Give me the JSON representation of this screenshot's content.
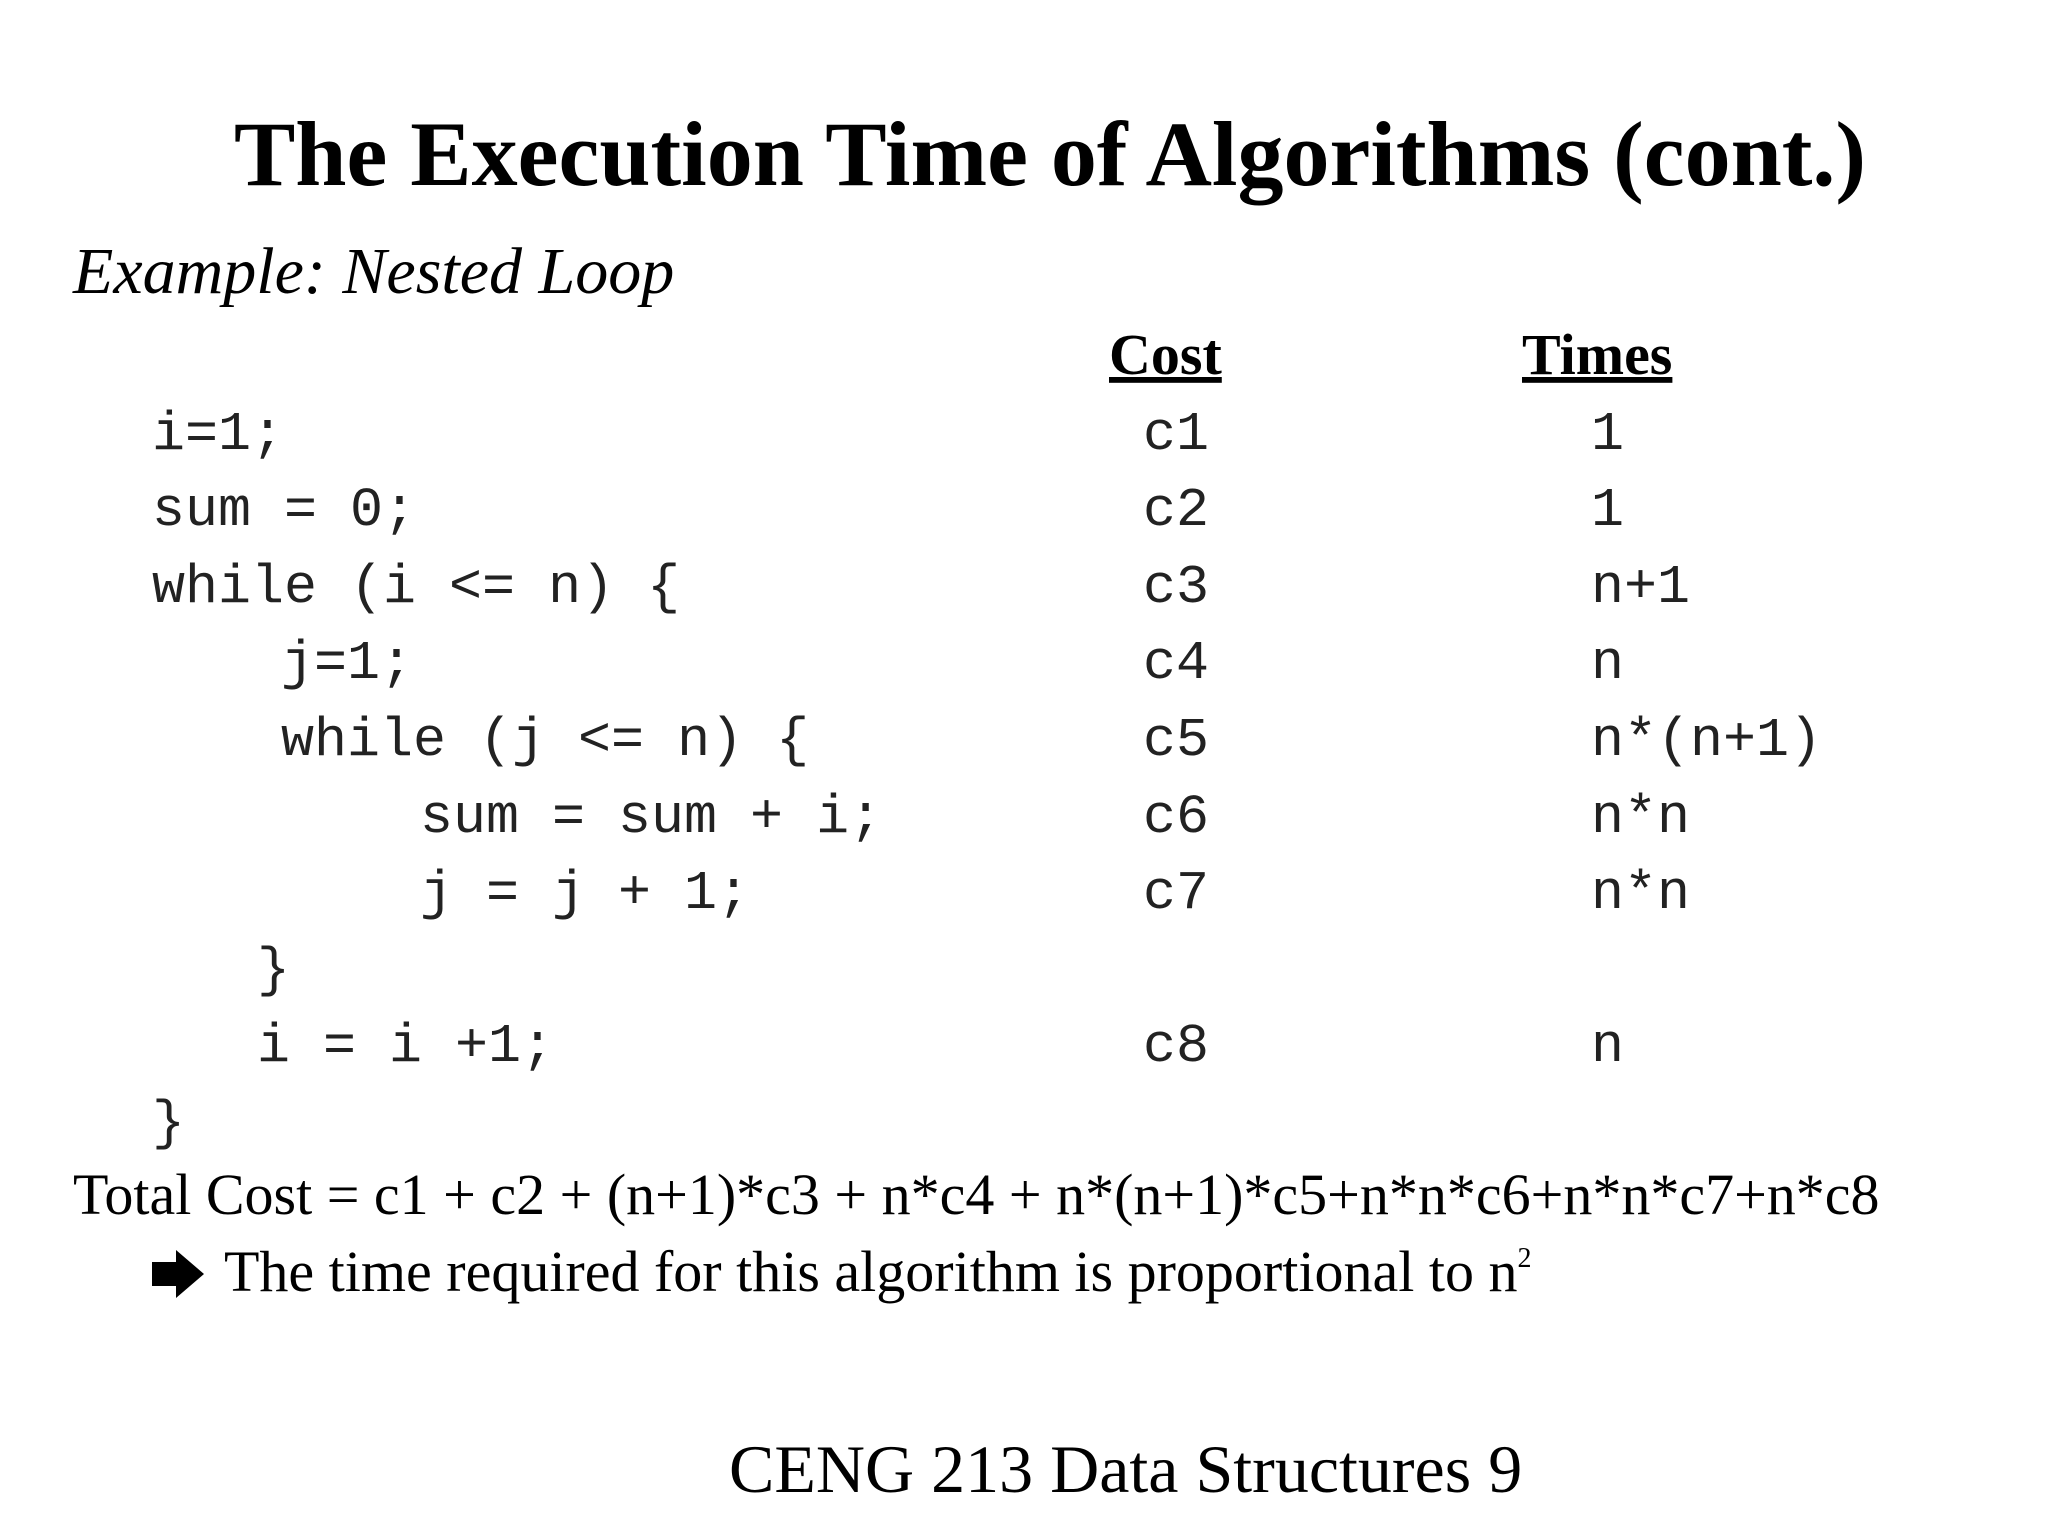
{
  "slide": {
    "title": "The Execution Time of Algorithms (cont.)",
    "subtitle": "Example: Nested Loop",
    "headers": {
      "cost": "Cost",
      "times": "Times"
    },
    "rows": [
      {
        "code": "i=1;",
        "cost": "c1",
        "times": "1"
      },
      {
        "code": "sum = 0;",
        "cost": "c2",
        "times": "1"
      },
      {
        "code": "while (i <= n) {",
        "cost": "c3",
        "times": "n+1"
      },
      {
        "code": "j=1;",
        "cost": "c4",
        "times": "n"
      },
      {
        "code": "while (j <= n) {",
        "cost": "c5",
        "times": "n*(n+1)"
      },
      {
        "code": "sum = sum + i;",
        "cost": "c6",
        "times": "n*n"
      },
      {
        "code": "j = j + 1;",
        "cost": "c7",
        "times": "n*n"
      },
      {
        "code": "}"
      },
      {
        "code": "i = i +1;",
        "cost": "c8",
        "times": "n"
      },
      {
        "code": "}"
      }
    ],
    "total": "Total Cost  =  c1 + c2 + (n+1)*c3 + n*c4 + n*(n+1)*c5+n*n*c6+n*n*c7+n*c8",
    "conclusion": {
      "text": "The time required for this algorithm is proportional to n",
      "superscript": "2"
    },
    "footer": "CENG 213 Data Structures 9"
  }
}
